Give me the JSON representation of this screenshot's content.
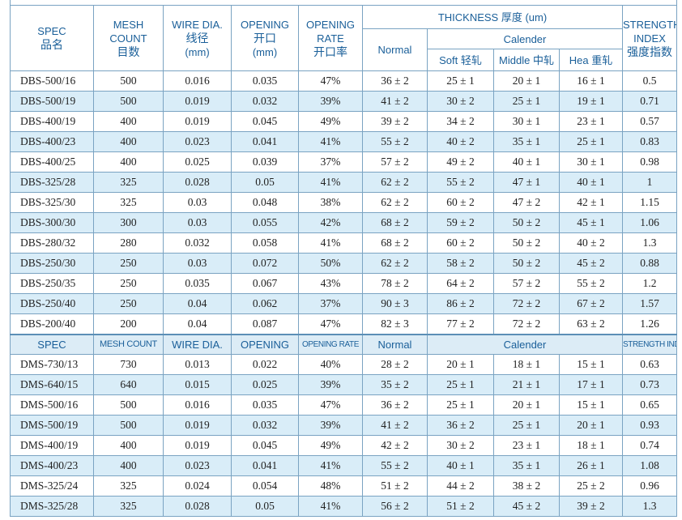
{
  "header": {
    "spec": "SPEC",
    "spec_zh": "品名",
    "mesh1": "MESH",
    "mesh2": "COUNT",
    "mesh_zh": "目数",
    "wire": "WIRE DIA.",
    "wire_zh": "线径",
    "wire_unit": "(mm)",
    "opening": "OPENING",
    "opening_zh": "开口",
    "opening_unit": "(mm)",
    "rate1": "OPENING",
    "rate2": "RATE",
    "rate_zh": "开口率",
    "thickness": "THICKNESS 厚度 (um)",
    "normal": "Normal",
    "calender": "Calender",
    "soft": "Soft 轻轧",
    "middle": "Middle 中轧",
    "hea": "Hea 重轧",
    "strength1": "STRENGTH",
    "strength2": "INDEX",
    "strength_zh": "强度指数"
  },
  "subheader": {
    "spec": "SPEC",
    "mesh": "MESH COUNT",
    "wire": "WIRE DIA.",
    "opening": "OPENING",
    "rate": "OPENING RATE",
    "normal": "Normal",
    "calender": "Calender",
    "strength": "STRENGTH INDEX"
  },
  "dbs_rows": [
    [
      "DBS-500/16",
      "500",
      "0.016",
      "0.035",
      "47%",
      "36 ± 2",
      "25 ± 1",
      "20 ± 1",
      "16 ± 1",
      "0.5"
    ],
    [
      "DBS-500/19",
      "500",
      "0.019",
      "0.032",
      "39%",
      "41 ± 2",
      "30 ± 2",
      "25 ± 1",
      "19 ± 1",
      "0.71"
    ],
    [
      "DBS-400/19",
      "400",
      "0.019",
      "0.045",
      "49%",
      "39 ± 2",
      "34 ± 2",
      "30 ± 1",
      "23 ± 1",
      "0.57"
    ],
    [
      "DBS-400/23",
      "400",
      "0.023",
      "0.041",
      "41%",
      "55 ± 2",
      "40 ± 2",
      "35 ± 1",
      "25 ± 1",
      "0.83"
    ],
    [
      "DBS-400/25",
      "400",
      "0.025",
      "0.039",
      "37%",
      "57 ± 2",
      "49 ± 2",
      "40 ± 1",
      "30 ± 1",
      "0.98"
    ],
    [
      "DBS-325/28",
      "325",
      "0.028",
      "0.05",
      "41%",
      "62 ± 2",
      "55 ± 2",
      "47 ± 1",
      "40 ± 1",
      "1"
    ],
    [
      "DBS-325/30",
      "325",
      "0.03",
      "0.048",
      "38%",
      "62 ± 2",
      "60 ± 2",
      "47 ± 2",
      "42 ± 1",
      "1.15"
    ],
    [
      "DBS-300/30",
      "300",
      "0.03",
      "0.055",
      "42%",
      "68 ± 2",
      "59 ± 2",
      "50 ± 2",
      "45 ± 1",
      "1.06"
    ],
    [
      "DBS-280/32",
      "280",
      "0.032",
      "0.058",
      "41%",
      "68 ± 2",
      "60 ± 2",
      "50 ± 2",
      "40 ± 2",
      "1.3"
    ],
    [
      "DBS-250/30",
      "250",
      "0.03",
      "0.072",
      "50%",
      "62 ± 2",
      "58 ± 2",
      "50 ± 2",
      "45 ± 2",
      "0.88"
    ],
    [
      "DBS-250/35",
      "250",
      "0.035",
      "0.067",
      "43%",
      "78 ± 2",
      "64 ± 2",
      "57 ± 2",
      "55 ± 2",
      "1.2"
    ],
    [
      "DBS-250/40",
      "250",
      "0.04",
      "0.062",
      "37%",
      "90 ± 3",
      "86 ± 2",
      "72 ± 2",
      "67 ± 2",
      "1.57"
    ],
    [
      "DBS-200/40",
      "200",
      "0.04",
      "0.087",
      "47%",
      "82 ± 3",
      "77 ± 2",
      "72 ± 2",
      "63 ± 2",
      "1.26"
    ]
  ],
  "dms_rows": [
    [
      "DMS-730/13",
      "730",
      "0.013",
      "0.022",
      "40%",
      "28 ± 2",
      "20 ± 1",
      "18 ± 1",
      "15 ± 1",
      "0.63"
    ],
    [
      "DMS-640/15",
      "640",
      "0.015",
      "0.025",
      "39%",
      "35 ± 2",
      "25 ± 1",
      "21 ± 1",
      "17 ± 1",
      "0.73"
    ],
    [
      "DMS-500/16",
      "500",
      "0.016",
      "0.035",
      "47%",
      "36 ± 2",
      "25 ± 1",
      "20 ± 1",
      "15 ± 1",
      "0.65"
    ],
    [
      "DMS-500/19",
      "500",
      "0.019",
      "0.032",
      "39%",
      "41 ± 2",
      "36 ± 2",
      "25 ± 1",
      "20 ± 1",
      "0.93"
    ],
    [
      "DMS-400/19",
      "400",
      "0.019",
      "0.045",
      "49%",
      "42 ± 2",
      "30 ± 2",
      "23 ± 1",
      "18 ± 1",
      "0.74"
    ],
    [
      "DMS-400/23",
      "400",
      "0.023",
      "0.041",
      "41%",
      "55 ± 2",
      "40 ± 1",
      "35 ± 1",
      "26 ± 1",
      "1.08"
    ],
    [
      "DMS-325/24",
      "325",
      "0.024",
      "0.054",
      "48%",
      "51 ± 2",
      "44 ± 2",
      "38 ± 2",
      "25 ± 2",
      "0.96"
    ],
    [
      "DMS-325/28",
      "325",
      "0.028",
      "0.05",
      "41%",
      "56 ± 2",
      "51 ± 2",
      "45 ± 2",
      "39 ± 2",
      "1.3"
    ]
  ],
  "colors": {
    "header_text": "#1a5f99",
    "alt_row": "#d9edf8",
    "border": "#7aa3c2"
  }
}
